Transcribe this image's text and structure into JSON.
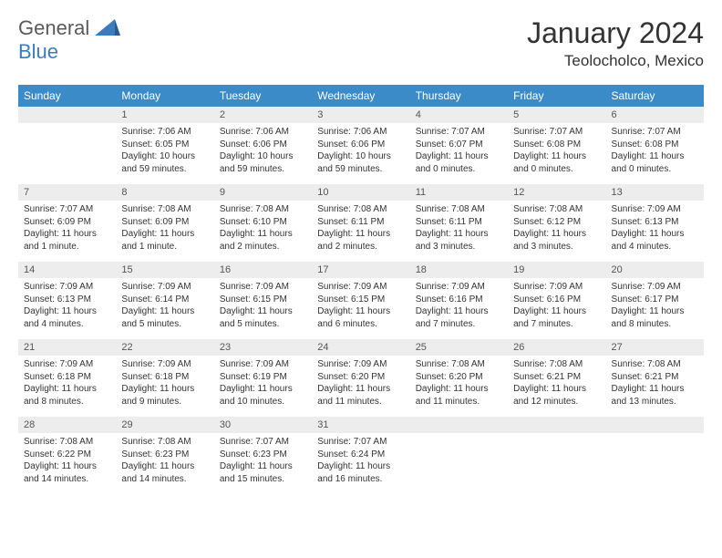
{
  "logo": {
    "part1": "General",
    "part2": "Blue"
  },
  "title": "January 2024",
  "location": "Teolocholco, Mexico",
  "colors": {
    "header_bg": "#3b8bc9",
    "header_text": "#ffffff",
    "daynum_bg": "#ededed",
    "border": "#3b8bc9",
    "logo_gray": "#5a5a5a",
    "logo_blue": "#3b7bbf"
  },
  "day_names": [
    "Sunday",
    "Monday",
    "Tuesday",
    "Wednesday",
    "Thursday",
    "Friday",
    "Saturday"
  ],
  "weeks": [
    [
      {
        "n": "",
        "s": "",
        "u": "",
        "d": ""
      },
      {
        "n": "1",
        "s": "Sunrise: 7:06 AM",
        "u": "Sunset: 6:05 PM",
        "d": "Daylight: 10 hours and 59 minutes."
      },
      {
        "n": "2",
        "s": "Sunrise: 7:06 AM",
        "u": "Sunset: 6:06 PM",
        "d": "Daylight: 10 hours and 59 minutes."
      },
      {
        "n": "3",
        "s": "Sunrise: 7:06 AM",
        "u": "Sunset: 6:06 PM",
        "d": "Daylight: 10 hours and 59 minutes."
      },
      {
        "n": "4",
        "s": "Sunrise: 7:07 AM",
        "u": "Sunset: 6:07 PM",
        "d": "Daylight: 11 hours and 0 minutes."
      },
      {
        "n": "5",
        "s": "Sunrise: 7:07 AM",
        "u": "Sunset: 6:08 PM",
        "d": "Daylight: 11 hours and 0 minutes."
      },
      {
        "n": "6",
        "s": "Sunrise: 7:07 AM",
        "u": "Sunset: 6:08 PM",
        "d": "Daylight: 11 hours and 0 minutes."
      }
    ],
    [
      {
        "n": "7",
        "s": "Sunrise: 7:07 AM",
        "u": "Sunset: 6:09 PM",
        "d": "Daylight: 11 hours and 1 minute."
      },
      {
        "n": "8",
        "s": "Sunrise: 7:08 AM",
        "u": "Sunset: 6:09 PM",
        "d": "Daylight: 11 hours and 1 minute."
      },
      {
        "n": "9",
        "s": "Sunrise: 7:08 AM",
        "u": "Sunset: 6:10 PM",
        "d": "Daylight: 11 hours and 2 minutes."
      },
      {
        "n": "10",
        "s": "Sunrise: 7:08 AM",
        "u": "Sunset: 6:11 PM",
        "d": "Daylight: 11 hours and 2 minutes."
      },
      {
        "n": "11",
        "s": "Sunrise: 7:08 AM",
        "u": "Sunset: 6:11 PM",
        "d": "Daylight: 11 hours and 3 minutes."
      },
      {
        "n": "12",
        "s": "Sunrise: 7:08 AM",
        "u": "Sunset: 6:12 PM",
        "d": "Daylight: 11 hours and 3 minutes."
      },
      {
        "n": "13",
        "s": "Sunrise: 7:09 AM",
        "u": "Sunset: 6:13 PM",
        "d": "Daylight: 11 hours and 4 minutes."
      }
    ],
    [
      {
        "n": "14",
        "s": "Sunrise: 7:09 AM",
        "u": "Sunset: 6:13 PM",
        "d": "Daylight: 11 hours and 4 minutes."
      },
      {
        "n": "15",
        "s": "Sunrise: 7:09 AM",
        "u": "Sunset: 6:14 PM",
        "d": "Daylight: 11 hours and 5 minutes."
      },
      {
        "n": "16",
        "s": "Sunrise: 7:09 AM",
        "u": "Sunset: 6:15 PM",
        "d": "Daylight: 11 hours and 5 minutes."
      },
      {
        "n": "17",
        "s": "Sunrise: 7:09 AM",
        "u": "Sunset: 6:15 PM",
        "d": "Daylight: 11 hours and 6 minutes."
      },
      {
        "n": "18",
        "s": "Sunrise: 7:09 AM",
        "u": "Sunset: 6:16 PM",
        "d": "Daylight: 11 hours and 7 minutes."
      },
      {
        "n": "19",
        "s": "Sunrise: 7:09 AM",
        "u": "Sunset: 6:16 PM",
        "d": "Daylight: 11 hours and 7 minutes."
      },
      {
        "n": "20",
        "s": "Sunrise: 7:09 AM",
        "u": "Sunset: 6:17 PM",
        "d": "Daylight: 11 hours and 8 minutes."
      }
    ],
    [
      {
        "n": "21",
        "s": "Sunrise: 7:09 AM",
        "u": "Sunset: 6:18 PM",
        "d": "Daylight: 11 hours and 8 minutes."
      },
      {
        "n": "22",
        "s": "Sunrise: 7:09 AM",
        "u": "Sunset: 6:18 PM",
        "d": "Daylight: 11 hours and 9 minutes."
      },
      {
        "n": "23",
        "s": "Sunrise: 7:09 AM",
        "u": "Sunset: 6:19 PM",
        "d": "Daylight: 11 hours and 10 minutes."
      },
      {
        "n": "24",
        "s": "Sunrise: 7:09 AM",
        "u": "Sunset: 6:20 PM",
        "d": "Daylight: 11 hours and 11 minutes."
      },
      {
        "n": "25",
        "s": "Sunrise: 7:08 AM",
        "u": "Sunset: 6:20 PM",
        "d": "Daylight: 11 hours and 11 minutes."
      },
      {
        "n": "26",
        "s": "Sunrise: 7:08 AM",
        "u": "Sunset: 6:21 PM",
        "d": "Daylight: 11 hours and 12 minutes."
      },
      {
        "n": "27",
        "s": "Sunrise: 7:08 AM",
        "u": "Sunset: 6:21 PM",
        "d": "Daylight: 11 hours and 13 minutes."
      }
    ],
    [
      {
        "n": "28",
        "s": "Sunrise: 7:08 AM",
        "u": "Sunset: 6:22 PM",
        "d": "Daylight: 11 hours and 14 minutes."
      },
      {
        "n": "29",
        "s": "Sunrise: 7:08 AM",
        "u": "Sunset: 6:23 PM",
        "d": "Daylight: 11 hours and 14 minutes."
      },
      {
        "n": "30",
        "s": "Sunrise: 7:07 AM",
        "u": "Sunset: 6:23 PM",
        "d": "Daylight: 11 hours and 15 minutes."
      },
      {
        "n": "31",
        "s": "Sunrise: 7:07 AM",
        "u": "Sunset: 6:24 PM",
        "d": "Daylight: 11 hours and 16 minutes."
      },
      {
        "n": "",
        "s": "",
        "u": "",
        "d": ""
      },
      {
        "n": "",
        "s": "",
        "u": "",
        "d": ""
      },
      {
        "n": "",
        "s": "",
        "u": "",
        "d": ""
      }
    ]
  ]
}
